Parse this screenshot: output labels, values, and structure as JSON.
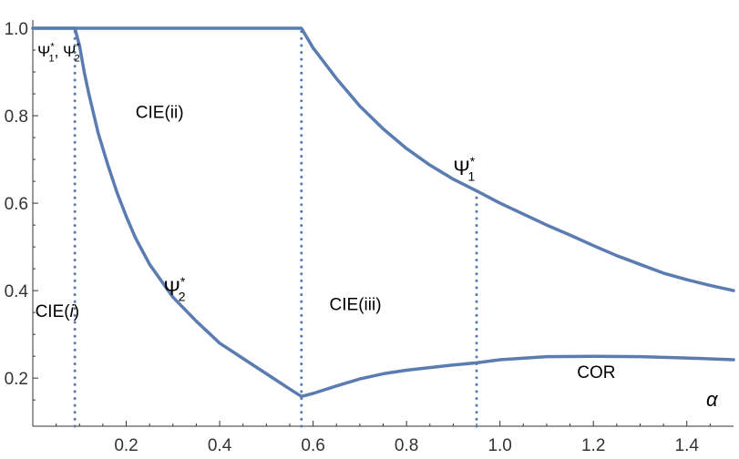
{
  "chart_data": {
    "type": "line",
    "title": "",
    "xlabel": "α",
    "ylabel": "",
    "xlim": [
      0,
      1.5
    ],
    "ylim": [
      0.09,
      1.0
    ],
    "x_ticks": [
      "0.2",
      "0.4",
      "0.6",
      "0.8",
      "1.0",
      "1.2",
      "1.4"
    ],
    "y_ticks": [
      "0.2",
      "0.4",
      "0.6",
      "0.8",
      "1.0"
    ],
    "grid": false,
    "colors": {
      "curve": "#5b7cb1",
      "dotted": "#5b7cb1",
      "axis": "#333333"
    },
    "series": [
      {
        "name": "Ψ₁*",
        "points": [
          [
            0.0,
            1.0
          ],
          [
            0.575,
            1.0
          ],
          [
            0.6,
            0.955
          ],
          [
            0.65,
            0.885
          ],
          [
            0.7,
            0.822
          ],
          [
            0.75,
            0.77
          ],
          [
            0.8,
            0.725
          ],
          [
            0.85,
            0.687
          ],
          [
            0.9,
            0.655
          ],
          [
            0.95,
            0.628
          ],
          [
            1.0,
            0.6
          ],
          [
            1.05,
            0.575
          ],
          [
            1.1,
            0.55
          ],
          [
            1.15,
            0.527
          ],
          [
            1.2,
            0.503
          ],
          [
            1.25,
            0.48
          ],
          [
            1.3,
            0.46
          ],
          [
            1.35,
            0.44
          ],
          [
            1.4,
            0.425
          ],
          [
            1.45,
            0.412
          ],
          [
            1.5,
            0.4
          ]
        ]
      },
      {
        "name": "Ψ₂*",
        "points": [
          [
            0.0,
            1.0
          ],
          [
            0.09,
            1.0
          ],
          [
            0.1,
            0.96
          ],
          [
            0.11,
            0.9
          ],
          [
            0.12,
            0.85
          ],
          [
            0.14,
            0.76
          ],
          [
            0.16,
            0.69
          ],
          [
            0.18,
            0.625
          ],
          [
            0.2,
            0.57
          ],
          [
            0.22,
            0.52
          ],
          [
            0.25,
            0.46
          ],
          [
            0.3,
            0.385
          ],
          [
            0.35,
            0.33
          ],
          [
            0.4,
            0.28
          ],
          [
            0.45,
            0.245
          ],
          [
            0.5,
            0.21
          ],
          [
            0.55,
            0.175
          ],
          [
            0.575,
            0.158
          ],
          [
            0.6,
            0.165
          ],
          [
            0.65,
            0.182
          ],
          [
            0.7,
            0.198
          ],
          [
            0.75,
            0.21
          ],
          [
            0.8,
            0.218
          ],
          [
            0.9,
            0.23
          ],
          [
            0.95,
            0.235
          ],
          [
            1.0,
            0.242
          ],
          [
            1.1,
            0.249
          ],
          [
            1.2,
            0.25
          ],
          [
            1.3,
            0.249
          ],
          [
            1.4,
            0.246
          ],
          [
            1.5,
            0.242
          ]
        ]
      }
    ],
    "vertical_lines": [
      0.09,
      0.575,
      0.95
    ],
    "annotations": [
      {
        "id": "psi12",
        "base": "Ψ",
        "sub": "1",
        "sup": "*",
        "sep": ", ",
        "base2": "Ψ",
        "sub2": "2",
        "sup2": "*",
        "x": 0.01,
        "y": 0.935,
        "size": 17
      },
      {
        "id": "cie-ii",
        "text": "CIE(ii)",
        "x": 0.22,
        "y": 0.795,
        "size": 19
      },
      {
        "id": "psi1",
        "base": "Ψ",
        "sub": "1",
        "sup": "*",
        "x": 0.9,
        "y": 0.665,
        "size": 22
      },
      {
        "id": "psi2",
        "base": "Ψ",
        "sub": "2",
        "sup": "*",
        "x": 0.28,
        "y": 0.39,
        "size": 22
      },
      {
        "id": "cie-iii",
        "text": "CIE(iii)",
        "x": 0.635,
        "y": 0.355,
        "size": 19
      },
      {
        "id": "cie-i",
        "text": "CIE(i)",
        "x": 0.005,
        "y": 0.34,
        "size": 19
      },
      {
        "id": "cor",
        "text": "COR",
        "x": 1.165,
        "y": 0.2,
        "size": 19
      }
    ]
  }
}
